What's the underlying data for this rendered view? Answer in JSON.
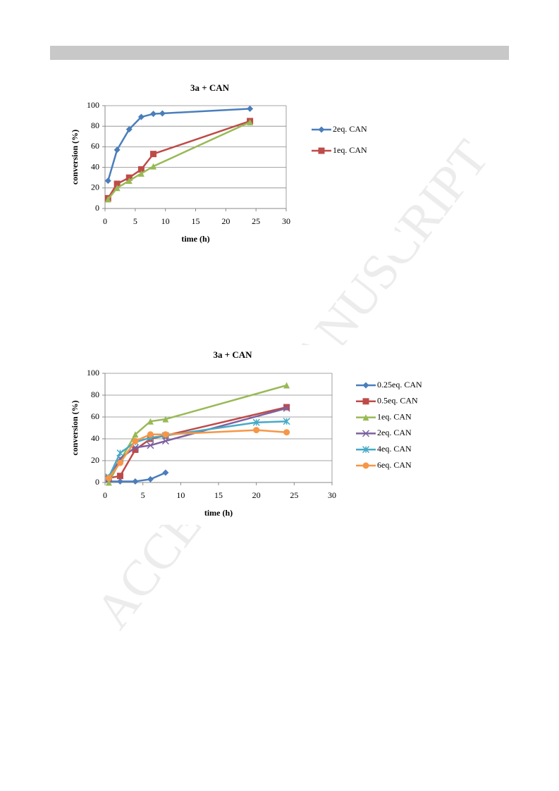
{
  "watermark": "ACCEPTED MANUSCRIPT",
  "chart_data": [
    {
      "type": "line",
      "title": "3a + CAN",
      "x_label": "time (h)",
      "y_label": "conversion (%)",
      "xlim": [
        0,
        30
      ],
      "xticks": [
        0,
        5,
        10,
        15,
        20,
        25,
        30
      ],
      "ylim": [
        0,
        100
      ],
      "yticks": [
        0,
        20,
        40,
        60,
        80,
        100
      ],
      "grid": true,
      "series": [
        {
          "name": "2eq. CAN",
          "color": "#4a7ebb",
          "marker": "diamond",
          "x": [
            0.5,
            2,
            4,
            6,
            8,
            9.5,
            24
          ],
          "values": [
            27,
            57,
            77,
            89,
            92,
            92.5,
            97
          ]
        },
        {
          "name": "1eq. CAN",
          "color": "#be4b48",
          "marker": "square",
          "x": [
            0.5,
            2,
            4,
            6,
            8,
            24
          ],
          "values": [
            10,
            24,
            30,
            38,
            53,
            85
          ]
        },
        {
          "color": "#98b954",
          "marker": "triangle",
          "x": [
            0.5,
            2,
            4,
            6,
            8,
            24
          ],
          "values": [
            9,
            20,
            27,
            34,
            41,
            84
          ]
        }
      ]
    },
    {
      "type": "line",
      "title": "3a + CAN",
      "x_label": "time (h)",
      "y_label": "conversion (%)",
      "xlim": [
        0,
        30
      ],
      "xticks": [
        0,
        5,
        10,
        15,
        20,
        25,
        30
      ],
      "ylim": [
        0,
        100
      ],
      "yticks": [
        0,
        20,
        40,
        60,
        80,
        100
      ],
      "grid": true,
      "series": [
        {
          "name": "0.25eq. CAN",
          "color": "#4a7ebb",
          "marker": "diamond",
          "x": [
            0.5,
            2,
            4,
            6,
            8
          ],
          "values": [
            1,
            1,
            1,
            3,
            9
          ]
        },
        {
          "name": "0.5eq. CAN",
          "color": "#be4b48",
          "marker": "square",
          "x": [
            0.5,
            2,
            4,
            6,
            8,
            24
          ],
          "values": [
            4,
            6,
            30,
            40,
            43,
            69
          ]
        },
        {
          "name": "1eq. CAN",
          "color": "#98b954",
          "marker": "triangle",
          "x": [
            0.5,
            2,
            4,
            6,
            8,
            24
          ],
          "values": [
            0,
            20,
            44,
            56,
            58,
            89
          ]
        },
        {
          "name": "2eq. CAN",
          "color": "#7d60a0",
          "marker": "x",
          "x": [
            0.5,
            2,
            4,
            6,
            8,
            24
          ],
          "values": [
            3,
            22,
            32,
            34,
            38,
            68
          ]
        },
        {
          "name": "4eq. CAN",
          "color": "#46aac5",
          "marker": "star",
          "x": [
            0.5,
            2,
            4,
            6,
            8,
            20,
            24
          ],
          "values": [
            5,
            27,
            37,
            41,
            43,
            55,
            56
          ]
        },
        {
          "name": "6eq. CAN",
          "color": "#f79646",
          "marker": "circle",
          "x": [
            0.5,
            2,
            4,
            6,
            8,
            20,
            24
          ],
          "values": [
            4,
            18,
            38,
            44,
            44,
            48,
            46
          ]
        }
      ]
    }
  ]
}
